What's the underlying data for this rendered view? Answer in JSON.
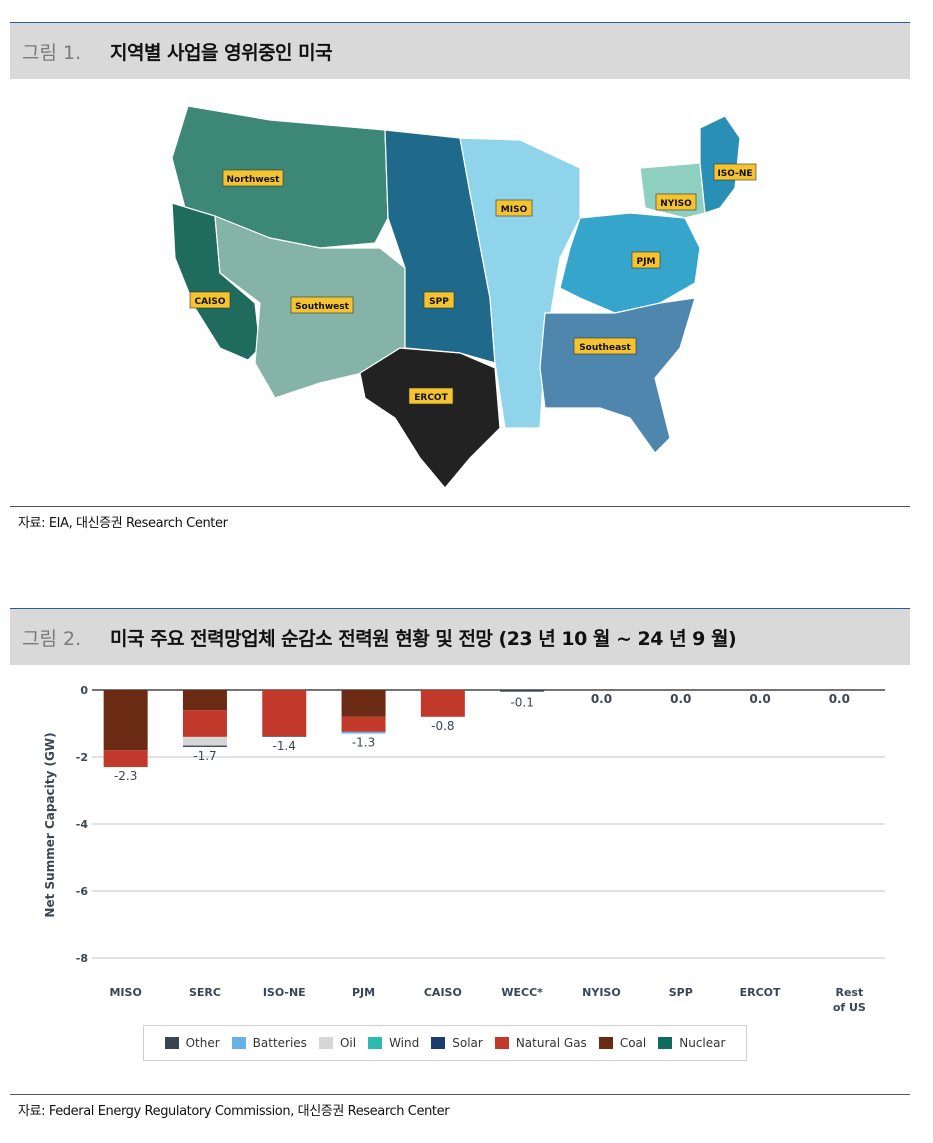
{
  "figure1": {
    "number": "그림 1.",
    "title": "지역별 사업을 영위중인 미국",
    "source": "자료: EIA, 대신증권 Research Center",
    "regions": [
      {
        "name": "Northwest",
        "color": "#3d8776"
      },
      {
        "name": "CAISO",
        "color": "#1f6b5d"
      },
      {
        "name": "Southwest",
        "color": "#86b3a7"
      },
      {
        "name": "SPP",
        "color": "#1f6a8a"
      },
      {
        "name": "MISO",
        "color": "#8fd4ea"
      },
      {
        "name": "ERCOT",
        "color": "#222222"
      },
      {
        "name": "Southeast",
        "color": "#4f86ad"
      },
      {
        "name": "PJM",
        "color": "#35a5cc"
      },
      {
        "name": "NYISO",
        "color": "#8fcfc0"
      },
      {
        "name": "ISO-NE",
        "color": "#2a8fb5"
      }
    ]
  },
  "figure2": {
    "number": "그림 2.",
    "title": "미국 주요 전력망업체 순감소 전력원 현황 및 전망 (23 년 10 월 ~ 24 년 9 월)",
    "source": "자료: Federal Energy Regulatory Commission, 대신증권 Research Center"
  },
  "chart_data": {
    "type": "bar",
    "stacked": true,
    "ylabel": "Net Summer Capacity (GW)",
    "ylim": [
      -8,
      0
    ],
    "yticks": [
      "0",
      "-2",
      "-4",
      "-6",
      "-8"
    ],
    "categories": [
      "MISO",
      "SERC",
      "ISO-NE",
      "PJM",
      "CAISO",
      "WECC*",
      "NYISO",
      "SPP",
      "ERCOT",
      "Rest of US"
    ],
    "totals": [
      -2.3,
      -1.7,
      -1.4,
      -1.3,
      -0.8,
      -0.1,
      0.0,
      0.0,
      0.0,
      0.0
    ],
    "total_labels": [
      "-2.3",
      "-1.7",
      "-1.4",
      "-1.3",
      "-0.8",
      "-0.1",
      "0.0",
      "0.0",
      "0.0",
      "0.0"
    ],
    "series": [
      {
        "name": "Coal",
        "color": "#6b2a14",
        "values": [
          -1.8,
          -0.6,
          0,
          -0.8,
          0,
          0,
          0,
          0,
          0,
          0
        ]
      },
      {
        "name": "Natural Gas",
        "color": "#c0392b",
        "values": [
          -0.5,
          -0.8,
          -1.38,
          -0.45,
          -0.8,
          0,
          0,
          0,
          0,
          0
        ]
      },
      {
        "name": "Oil",
        "color": "#d6d6d6",
        "values": [
          0,
          -0.26,
          0,
          0,
          0,
          0,
          0,
          0,
          0,
          0
        ]
      },
      {
        "name": "Batteries",
        "color": "#6ab2e4",
        "values": [
          0,
          0,
          0,
          -0.05,
          0,
          0,
          0,
          0,
          0,
          0
        ]
      },
      {
        "name": "Other",
        "color": "#3b4452",
        "values": [
          0,
          -0.04,
          -0.02,
          0,
          0,
          -0.05,
          0,
          0,
          0,
          0
        ]
      }
    ],
    "legend": [
      {
        "name": "Other",
        "color": "#3b4452"
      },
      {
        "name": "Batteries",
        "color": "#6ab2e4"
      },
      {
        "name": "Oil",
        "color": "#d6d6d6"
      },
      {
        "name": "Wind",
        "color": "#2fb9b0"
      },
      {
        "name": "Solar",
        "color": "#1c3d6e"
      },
      {
        "name": "Natural Gas",
        "color": "#c0392b"
      },
      {
        "name": "Coal",
        "color": "#6b2a14"
      },
      {
        "name": "Nuclear",
        "color": "#0f6b5e"
      }
    ]
  }
}
